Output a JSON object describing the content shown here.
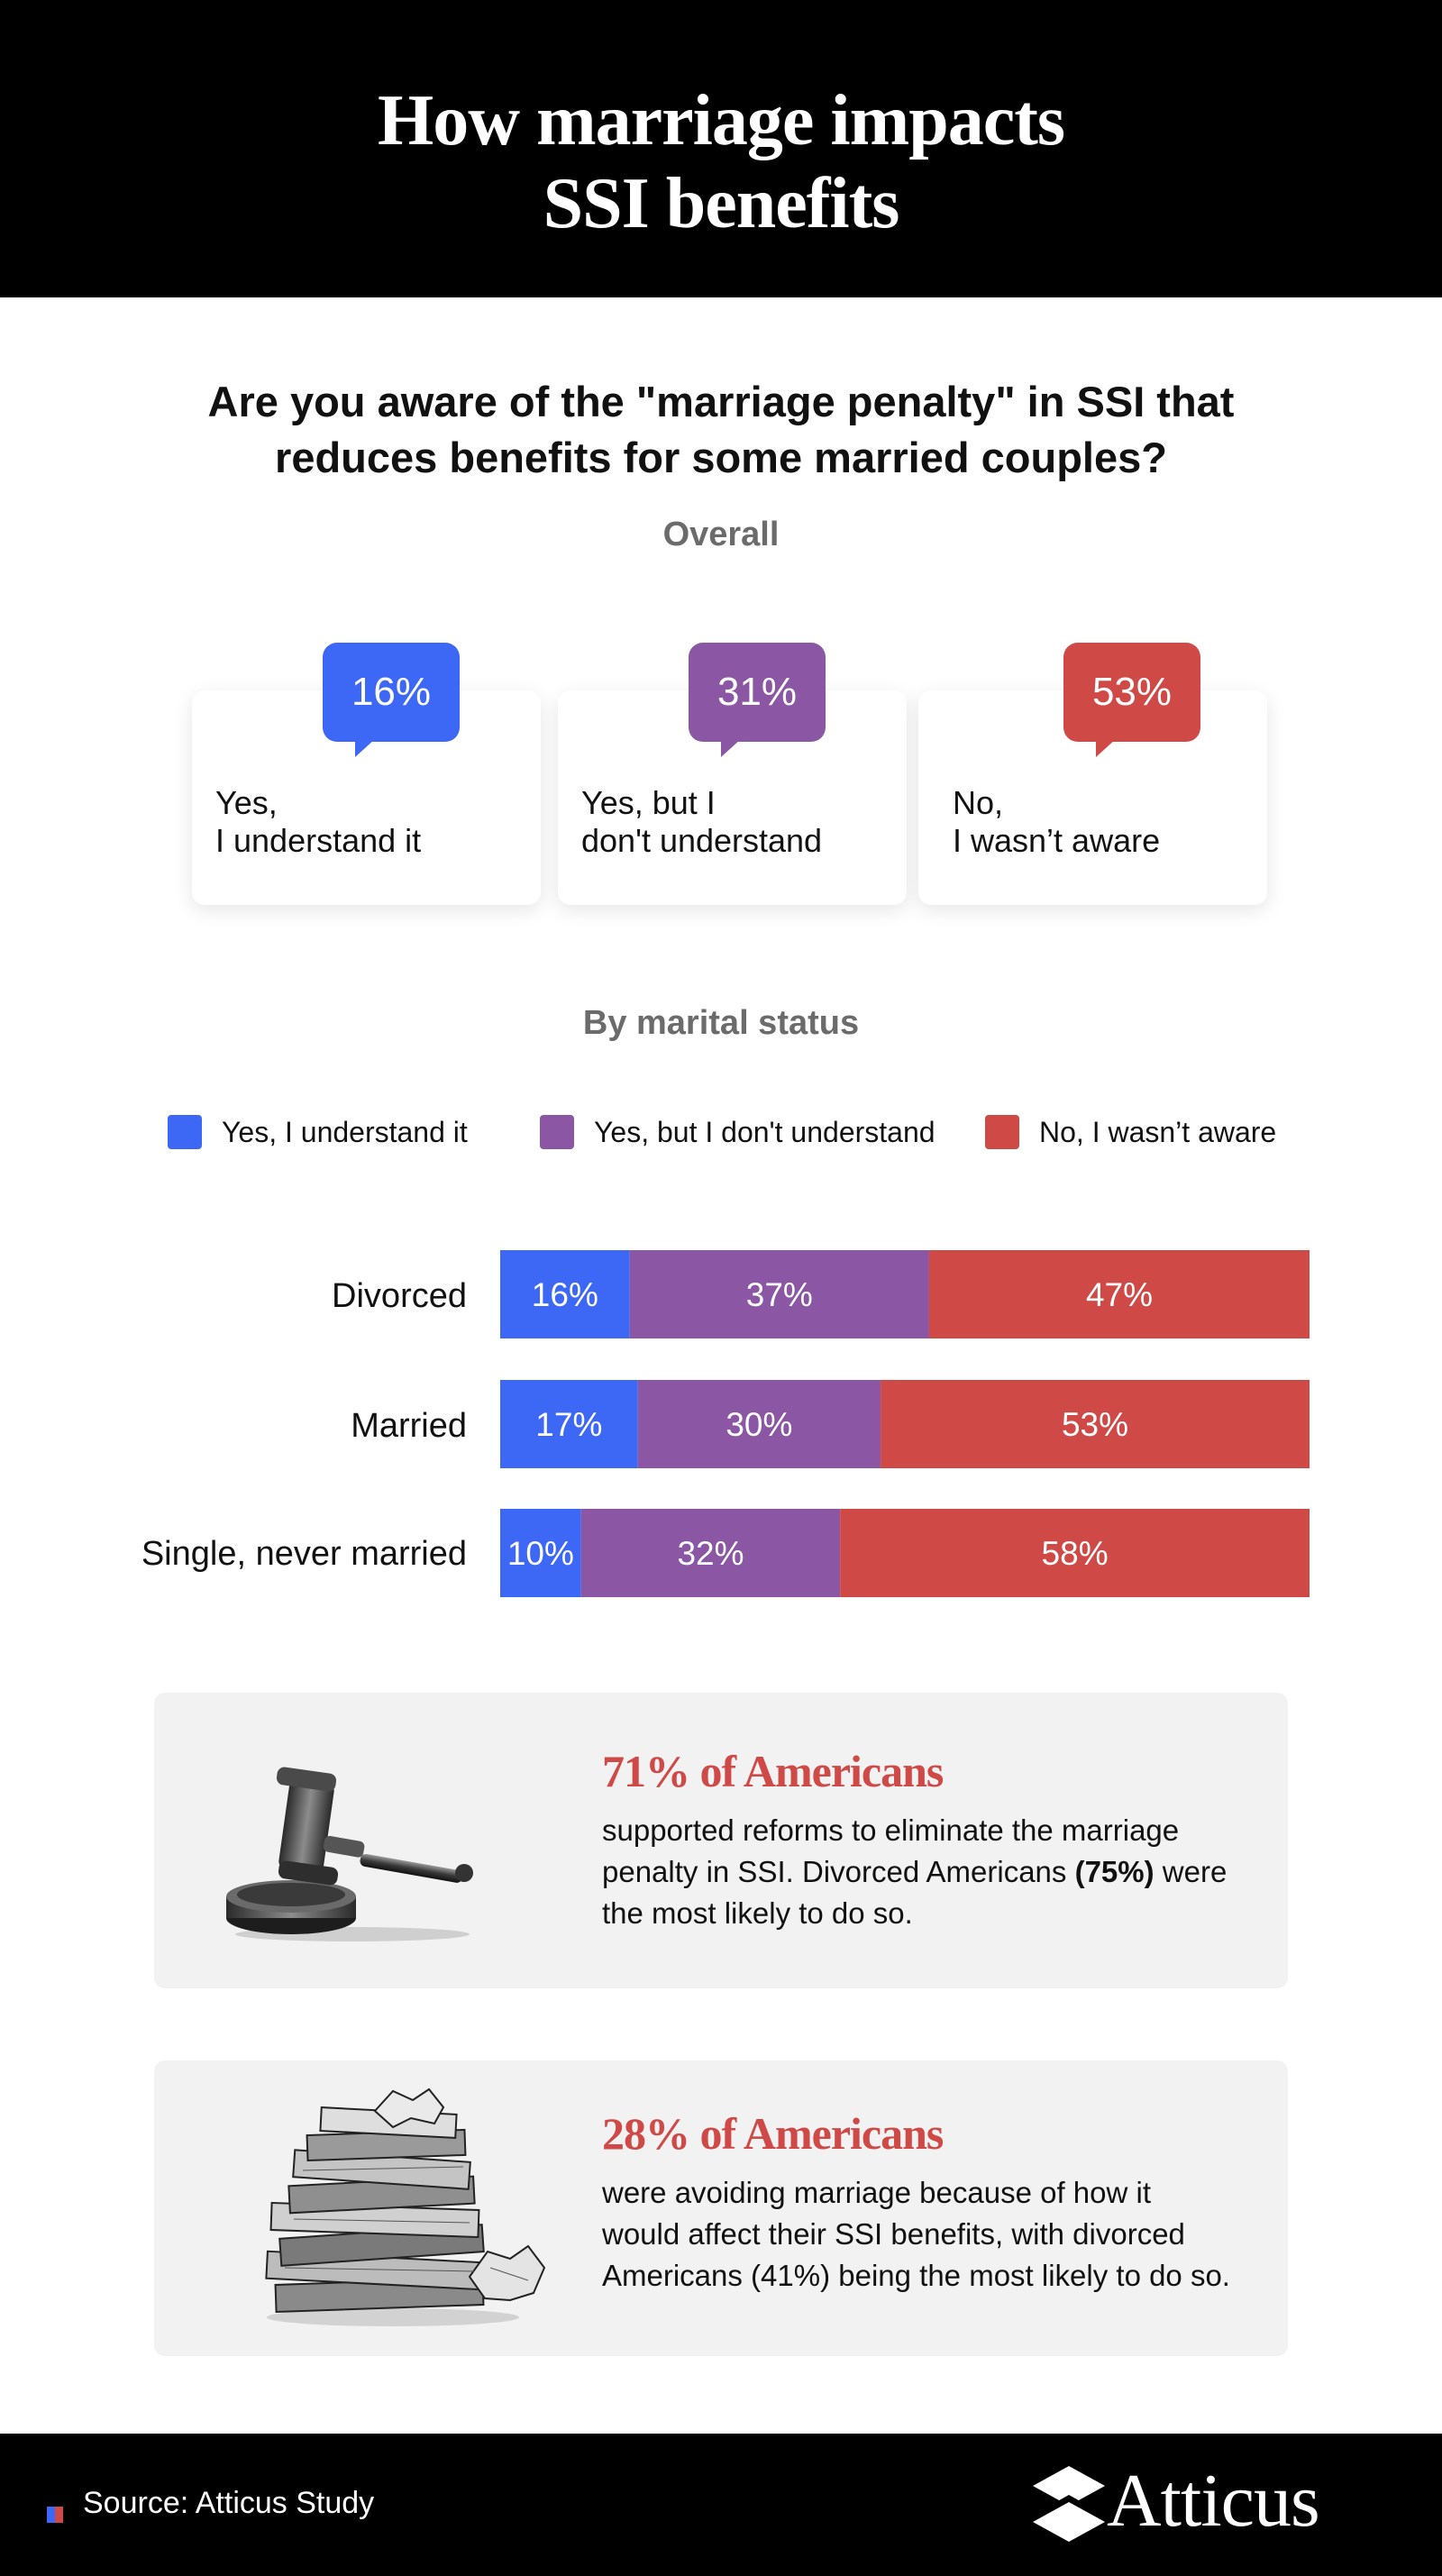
{
  "header": {
    "title_line1": "How marriage impacts",
    "title_line2": "SSI benefits"
  },
  "question": "Are you aware of the \"marriage penalty\" in SSI that reduces benefits for some married couples?",
  "overall": {
    "label": "Overall",
    "cards": [
      {
        "percent": "16%",
        "line1": "Yes,",
        "line2": "I understand it",
        "color": "#3d67f5"
      },
      {
        "percent": "31%",
        "line1": "Yes, but I",
        "line2": "don't understand",
        "color": "#8b56a4"
      },
      {
        "percent": "53%",
        "line1": "No,",
        "line2": "I wasn’t aware",
        "color": "#cf4a46"
      }
    ]
  },
  "by_status": {
    "label": "By marital status"
  },
  "legend": [
    {
      "label": "Yes, I understand it",
      "color": "#3d67f5"
    },
    {
      "label": "Yes, but I don't understand",
      "color": "#8b56a4"
    },
    {
      "label": "No, I wasn’t aware",
      "color": "#cf4a46"
    }
  ],
  "chart_data": {
    "type": "bar",
    "orientation": "horizontal",
    "stacked": true,
    "title": "By marital status",
    "categories": [
      "Divorced",
      "Married",
      "Single, never married"
    ],
    "series": [
      {
        "name": "Yes, I understand it",
        "values": [
          16,
          17,
          10
        ],
        "labels": [
          "16%",
          "17%",
          "10%"
        ],
        "color": "#3d67f5"
      },
      {
        "name": "Yes, but I don't understand",
        "values": [
          37,
          30,
          32
        ],
        "labels": [
          "37%",
          "30%",
          "32%"
        ],
        "color": "#8b56a4"
      },
      {
        "name": "No, I wasn’t aware",
        "values": [
          47,
          53,
          58
        ],
        "labels": [
          "47%",
          "53%",
          "58%"
        ],
        "color": "#cf4a46"
      }
    ],
    "xlim": [
      0,
      100
    ],
    "unit": "%"
  },
  "facts": [
    {
      "headline": "71% of Americans",
      "body_before": "supported reforms to eliminate the marriage penalty in SSI. Divorced Americans ",
      "body_bold": "(75%)",
      "body_after": " were the most likely to do so.",
      "icon": "gavel-icon"
    },
    {
      "headline": "28% of Americans",
      "body": "were avoiding marriage because of how it would affect their SSI benefits, with divorced Americans (41%) being the most likely to do so.",
      "icon": "paper-pile-icon"
    }
  ],
  "footer": {
    "source": "Source: Atticus Study",
    "logo": "Atticus"
  }
}
